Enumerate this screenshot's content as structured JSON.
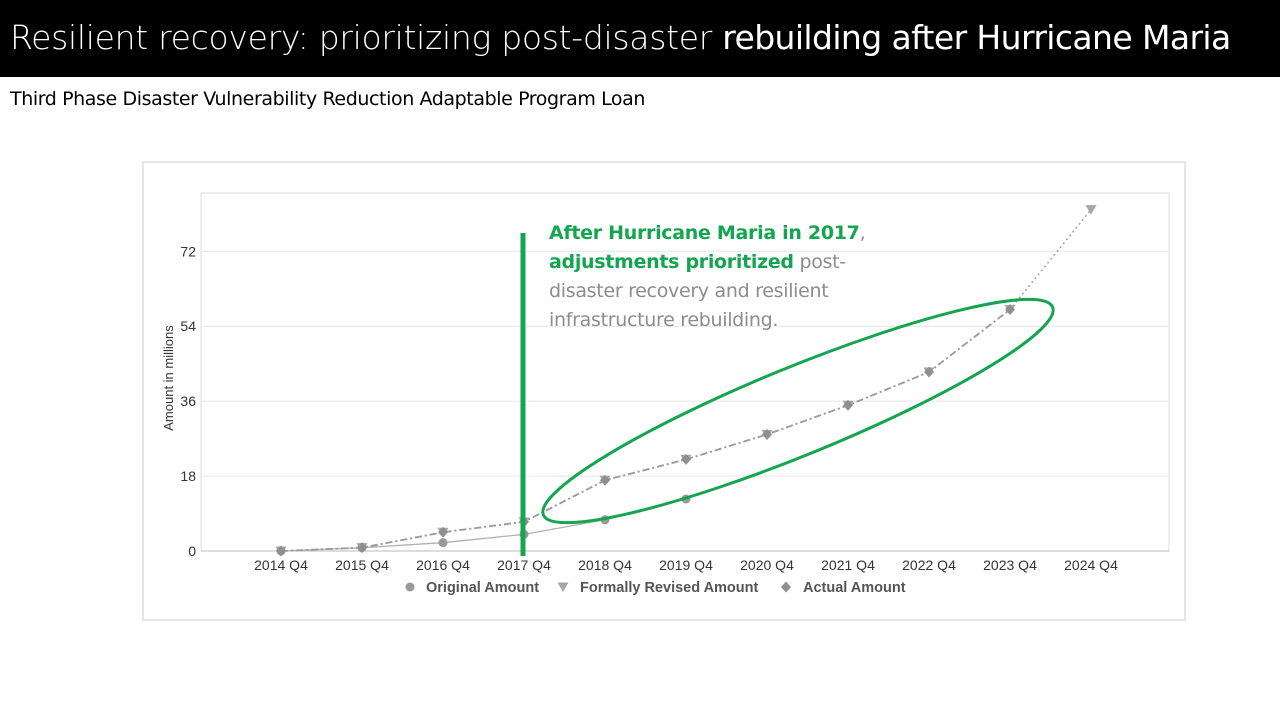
{
  "slide": {
    "title_part1": "Resilient recovery: prioritizing post-disaster",
    "title_part2": "rebuilding after Hurricane Maria",
    "subtitle": "Third Phase Disaster Vulnerability Reduction Adaptable Program Loan"
  },
  "annotation": {
    "bold_1": "After Hurricane Maria in 2017",
    "comma": ",",
    "bold_2": "adjustments prioritized",
    "rest": " post-disaster recovery and resilient infrastructure rebuilding."
  },
  "colors": {
    "accent": "#14a550",
    "series": "#999999",
    "grid": "#e6e6e6"
  },
  "chart_data": {
    "type": "line",
    "ylabel": "Amount in millions",
    "xlabel": "",
    "categories": [
      "2014 Q4",
      "2015 Q4",
      "2016 Q4",
      "2017 Q4",
      "2018 Q4",
      "2019 Q4",
      "2020 Q4",
      "2021 Q4",
      "2022 Q4",
      "2023 Q4",
      "2024 Q4"
    ],
    "ylim": [
      0,
      86
    ],
    "yticks": [
      0,
      18,
      36,
      54,
      72
    ],
    "grid": true,
    "legend_position": "bottom",
    "series": [
      {
        "name": "Original Amount",
        "marker": "circle",
        "values": [
          0,
          0.8,
          2,
          4,
          7.5,
          12.5,
          null,
          null,
          null,
          null,
          null
        ]
      },
      {
        "name": "Formally Revised Amount",
        "marker": "triangle-down",
        "values": [
          0,
          0.8,
          4.5,
          7,
          17,
          22,
          28,
          35,
          43,
          58,
          82
        ]
      },
      {
        "name": "Actual Amount",
        "marker": "diamond",
        "values": [
          0,
          0.8,
          4.5,
          7,
          17,
          22,
          28,
          35,
          43,
          58,
          null
        ]
      }
    ],
    "annotation_marker": "vertical line at 2017 Q4"
  }
}
